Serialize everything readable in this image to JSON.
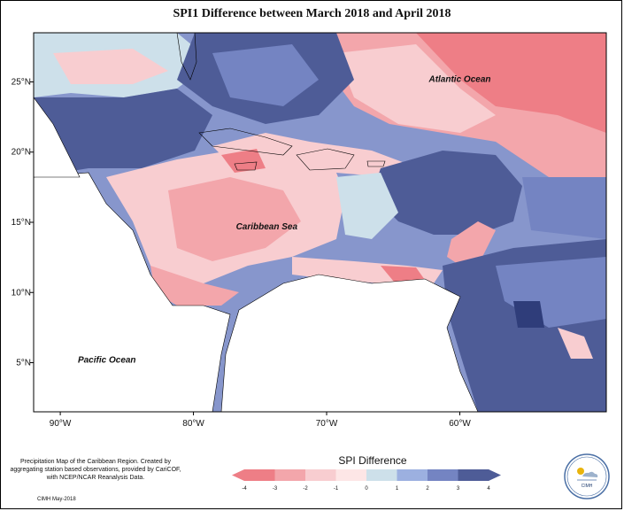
{
  "title": "SPI1 Difference between March 2018 and April 2018",
  "map": {
    "lon_range": [
      -92,
      -49
    ],
    "lat_range": [
      1.5,
      28.5
    ],
    "lon_ticks": [
      {
        "value": -90,
        "label": "90°W"
      },
      {
        "value": -80,
        "label": "80°W"
      },
      {
        "value": -70,
        "label": "70°W"
      },
      {
        "value": -60,
        "label": "60°W"
      }
    ],
    "lat_ticks": [
      {
        "value": 25,
        "label": "25°N"
      },
      {
        "value": 20,
        "label": "20°N"
      },
      {
        "value": 15,
        "label": "15°N"
      },
      {
        "value": 10,
        "label": "10°N"
      },
      {
        "value": 5,
        "label": "5°N"
      }
    ],
    "place_labels": [
      {
        "name": "Atlantic Ocean",
        "lon": -60.0,
        "lat": 25.0
      },
      {
        "name": "Caribbean Sea",
        "lon": -74.5,
        "lat": 14.5
      },
      {
        "name": "Pacific Ocean",
        "lon": -86.5,
        "lat": 5.0
      }
    ]
  },
  "legend": {
    "title": "SPI Difference",
    "min": -4,
    "max": 4,
    "ticks": [
      "-4",
      "-3",
      "-2",
      "-1",
      "0",
      "1",
      "2",
      "3",
      "4"
    ],
    "colors": [
      "#ee7e86",
      "#f3a6ab",
      "#f8cdd0",
      "#fde6e6",
      "#cde0ea",
      "#9cb0e0",
      "#7484c2",
      "#4e5c97"
    ]
  },
  "description": "Precipitation Map of the Caribbean Region. Created by aggregating station based observations, provided by CariCOF, with NCEP/NCAR Reanalysis Data.",
  "credit": "CIMH May-2018",
  "logo": {
    "name": "CIMH",
    "icon": "sun-cloud-icon"
  }
}
